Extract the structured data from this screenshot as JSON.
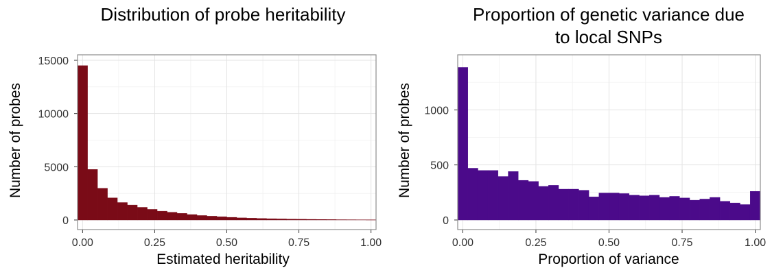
{
  "chart_data": [
    {
      "type": "bar",
      "title": "Distribution of probe heritability",
      "xlabel": "Estimated heritability",
      "ylabel": "Number of probes",
      "xlim": [
        -0.0175,
        1.0175
      ],
      "ylim": [
        0,
        15000
      ],
      "xticks": [
        0,
        0.25,
        0.5,
        0.75,
        1
      ],
      "xtick_labels": [
        "0.00",
        "0.25",
        "0.50",
        "0.75",
        "1.00"
      ],
      "yticks": [
        0,
        5000,
        10000,
        15000
      ],
      "ytick_labels": [
        "0",
        "5000",
        "10000",
        "15000"
      ],
      "bin_width": 0.0345,
      "fill_color": "#7a0b17",
      "grid": true,
      "bins": [
        0.0,
        0.0345,
        0.069,
        0.1034,
        0.1379,
        0.1724,
        0.2069,
        0.2414,
        0.2759,
        0.3103,
        0.3448,
        0.3793,
        0.4138,
        0.4483,
        0.4828,
        0.5172,
        0.5517,
        0.5862,
        0.6207,
        0.6552,
        0.6897,
        0.7241,
        0.7586,
        0.7931,
        0.8276,
        0.8621,
        0.8966,
        0.931,
        0.9655,
        1.0
      ],
      "values": [
        14500,
        4750,
        2980,
        2080,
        1640,
        1410,
        1190,
        1000,
        830,
        720,
        620,
        510,
        420,
        360,
        300,
        250,
        200,
        170,
        140,
        120,
        100,
        80,
        70,
        60,
        50,
        40,
        30,
        25,
        20,
        15
      ]
    },
    {
      "type": "bar",
      "title": "Proportion of genetic variance due to local SNPs",
      "title_lines": [
        "Proportion of genetic variance due",
        "to local SNPs"
      ],
      "xlabel": "Proportion of variance",
      "ylabel": "Number of probes",
      "xlim": [
        -0.0175,
        1.0175
      ],
      "ylim": [
        0,
        1390
      ],
      "xticks": [
        0,
        0.25,
        0.5,
        0.75,
        1
      ],
      "xtick_labels": [
        "0.00",
        "0.25",
        "0.50",
        "0.75",
        "1.00"
      ],
      "yticks": [
        0,
        500,
        1000
      ],
      "ytick_labels": [
        "0",
        "500",
        "1000"
      ],
      "bin_width": 0.0345,
      "fill_color": "#4b0a8a",
      "grid": true,
      "bins": [
        0.0,
        0.0345,
        0.069,
        0.1034,
        0.1379,
        0.1724,
        0.2069,
        0.2414,
        0.2759,
        0.3103,
        0.3448,
        0.3793,
        0.4138,
        0.4483,
        0.4828,
        0.5172,
        0.5517,
        0.5862,
        0.6207,
        0.6552,
        0.6897,
        0.7241,
        0.7586,
        0.7931,
        0.8276,
        0.8621,
        0.8966,
        0.931,
        0.9655,
        1.0
      ],
      "values": [
        1385,
        470,
        450,
        450,
        395,
        440,
        360,
        350,
        305,
        315,
        280,
        280,
        270,
        210,
        245,
        245,
        240,
        225,
        220,
        225,
        205,
        215,
        200,
        180,
        190,
        205,
        170,
        155,
        140,
        260
      ]
    }
  ]
}
